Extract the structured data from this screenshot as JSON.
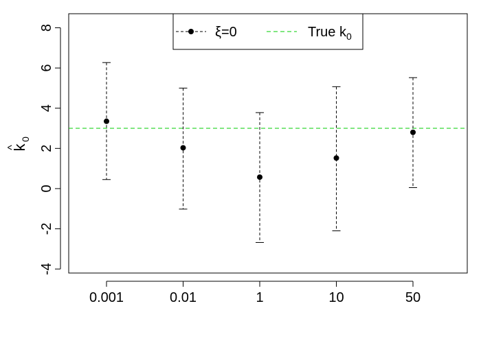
{
  "chart_data": {
    "type": "scatter",
    "categories": [
      "0.001",
      "0.01",
      "1",
      "10",
      "50"
    ],
    "series": [
      {
        "name": "ξ=0",
        "values": [
          3.35,
          2.03,
          0.57,
          1.52,
          2.8
        ],
        "lower": [
          0.45,
          -1.02,
          -2.68,
          -2.1,
          0.05
        ],
        "upper": [
          6.27,
          5.0,
          3.78,
          5.07,
          5.52
        ],
        "color": "#000000",
        "line_style": "dashed"
      }
    ],
    "reference_lines": [
      {
        "name": "True k0",
        "y": 3.0,
        "color": "#00cc00",
        "line_style": "dashed"
      }
    ],
    "ylabel": "k0 (hat)",
    "yticks": [
      -4,
      -2,
      0,
      2,
      4,
      6,
      8
    ],
    "ylim": [
      -4.2,
      8.7
    ],
    "legend": {
      "entries": [
        {
          "label": "ξ=0"
        },
        {
          "label_main": "True k",
          "label_sub": "0"
        }
      ],
      "placement": "top-center"
    },
    "grid": false
  }
}
